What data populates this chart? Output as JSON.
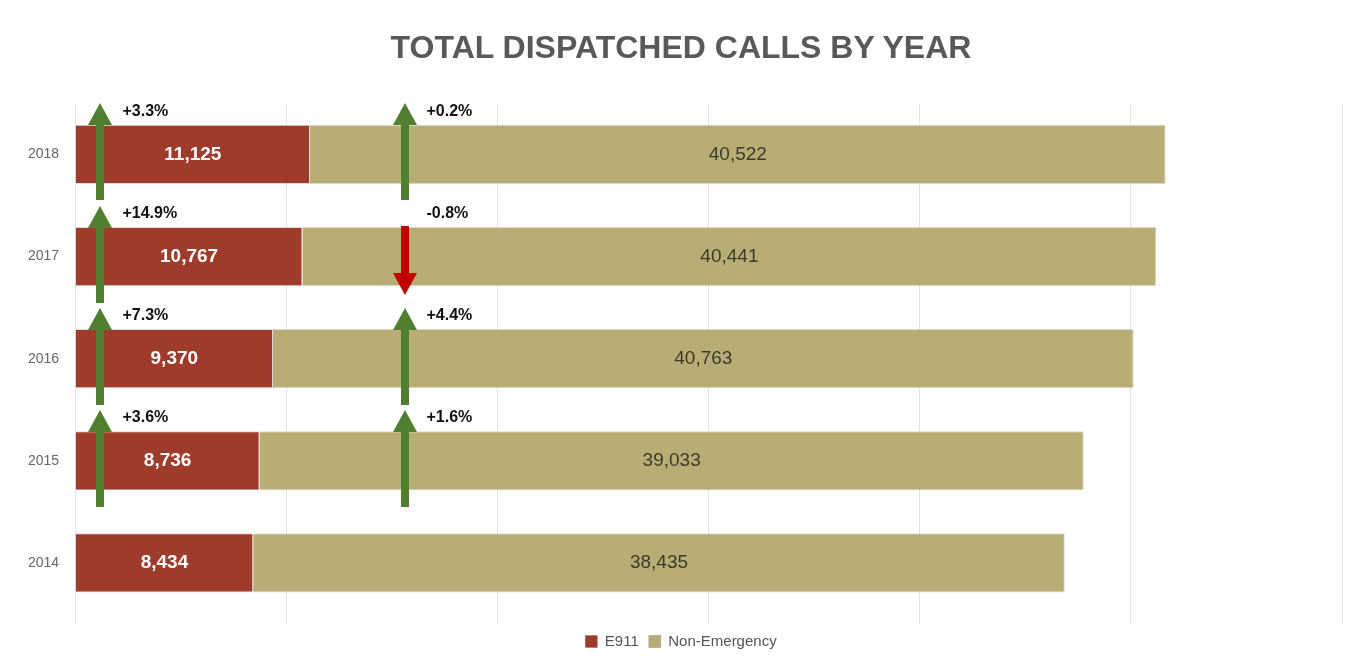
{
  "chart_data": {
    "type": "bar",
    "title": "TOTAL DISPATCHED CALLS BY YEAR",
    "orientation": "horizontal",
    "stacked": true,
    "categories": [
      "2018",
      "2017",
      "2016",
      "2015",
      "2014"
    ],
    "series": [
      {
        "name": "E911",
        "color": "#9e3b2b",
        "values": [
          11125,
          10767,
          9370,
          8736,
          8434
        ],
        "value_labels": [
          "11,125",
          "10,767",
          "9,370",
          "8,736",
          "8,434"
        ]
      },
      {
        "name": "Non-Emergency",
        "color": "#b8ad74",
        "values": [
          40522,
          40441,
          40763,
          39033,
          38435
        ],
        "value_labels": [
          "40,522",
          "40,441",
          "40,763",
          "39,033",
          "38,435"
        ]
      }
    ],
    "tick_labels": "y",
    "grid": "x",
    "legend": "bottom",
    "annotations": [
      "+3.3%",
      "+0.2%",
      "+14.9%",
      "-0.8%",
      "+7.3%",
      "+4.4%",
      "+3.6%",
      "+1.6%"
    ]
  }
}
